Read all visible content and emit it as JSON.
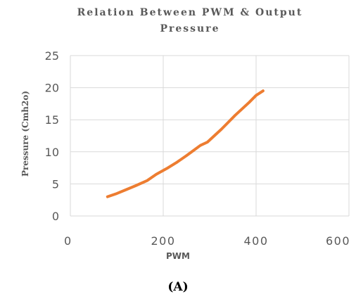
{
  "chart_data": {
    "type": "line",
    "title_lines": [
      "Relation Between PWM & Output",
      "Pressure"
    ],
    "xlabel": "PWM",
    "ylabel": "Pressure (Cmh2o)",
    "xlim": [
      0,
      600
    ],
    "ylim": [
      0,
      25
    ],
    "xticks": [
      0,
      200,
      400,
      600
    ],
    "yticks": [
      0,
      5,
      10,
      15,
      20,
      25
    ],
    "grid": true,
    "legend": "none",
    "series": [
      {
        "color": "#ED7D31",
        "points": [
          [
            80,
            3.0
          ],
          [
            100,
            3.5
          ],
          [
            120,
            4.1
          ],
          [
            140,
            4.7
          ],
          [
            165,
            5.5
          ],
          [
            185,
            6.5
          ],
          [
            210,
            7.5
          ],
          [
            230,
            8.4
          ],
          [
            250,
            9.4
          ],
          [
            265,
            10.2
          ],
          [
            280,
            11.0
          ],
          [
            295,
            11.5
          ],
          [
            310,
            12.5
          ],
          [
            325,
            13.5
          ],
          [
            340,
            14.6
          ],
          [
            355,
            15.7
          ],
          [
            370,
            16.7
          ],
          [
            385,
            17.7
          ],
          [
            400,
            18.8
          ],
          [
            415,
            19.5
          ]
        ]
      }
    ],
    "caption": "(A)"
  }
}
